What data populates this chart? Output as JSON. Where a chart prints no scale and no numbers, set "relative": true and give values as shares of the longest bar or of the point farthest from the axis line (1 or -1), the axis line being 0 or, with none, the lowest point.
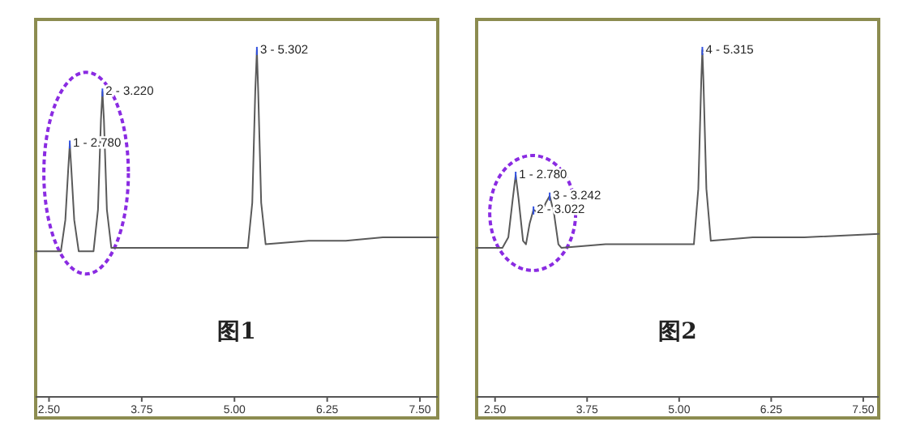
{
  "chart_data": [
    {
      "type": "line",
      "relative": true,
      "tick_labels": "x",
      "xlim": [
        2.32,
        7.74
      ],
      "xticks": [
        {
          "value": 2.5,
          "label": "2.50"
        },
        {
          "value": 3.75,
          "label": "3.75"
        },
        {
          "value": 5.0,
          "label": "5.00"
        },
        {
          "value": 6.25,
          "label": "6.25"
        },
        {
          "value": 7.5,
          "label": "7.50"
        }
      ],
      "series": [
        {
          "color": "#5a5a5a",
          "x": [
            2.32,
            2.66,
            2.72,
            2.76,
            2.78,
            2.8,
            2.84,
            2.9,
            3.1,
            3.16,
            3.2,
            3.22,
            3.24,
            3.28,
            3.34,
            4.0,
            5.18,
            5.24,
            5.28,
            5.302,
            5.32,
            5.36,
            5.42,
            6.0,
            6.5,
            7.0,
            7.74
          ],
          "values": [
            0.42,
            0.42,
            0.51,
            0.66,
            0.73,
            0.66,
            0.51,
            0.42,
            0.42,
            0.54,
            0.8,
            0.88,
            0.8,
            0.54,
            0.43,
            0.43,
            0.43,
            0.56,
            0.88,
            1,
            0.88,
            0.56,
            0.44,
            0.45,
            0.45,
            0.46,
            0.46
          ]
        }
      ],
      "annotations": [
        {
          "text": "1 - 2.780",
          "x": 2.78,
          "y": 0.73
        },
        {
          "text": "2 - 3.220",
          "x": 3.22,
          "y": 0.88
        },
        {
          "text": "3 - 5.302",
          "x": 5.302,
          "y": 1
        },
        "图1"
      ]
    },
    {
      "type": "line",
      "relative": true,
      "tick_labels": "x",
      "xlim": [
        2.25,
        7.71
      ],
      "xticks": [
        {
          "value": 2.5,
          "label": "2.50"
        },
        {
          "value": 3.75,
          "label": "3.75"
        },
        {
          "value": 5.0,
          "label": "5.00"
        },
        {
          "value": 6.25,
          "label": "6.25"
        },
        {
          "value": 7.5,
          "label": "7.50"
        }
      ],
      "series": [
        {
          "color": "#5a5a5a",
          "x": [
            2.25,
            2.6,
            2.68,
            2.74,
            2.78,
            2.82,
            2.88,
            2.92,
            2.97,
            3.022,
            3.08,
            3.13,
            3.19,
            3.242,
            3.3,
            3.36,
            3.4,
            4.0,
            5.2,
            5.26,
            5.3,
            5.315,
            5.33,
            5.37,
            5.43,
            6.0,
            6.7,
            7.71
          ],
          "values": [
            0.43,
            0.43,
            0.46,
            0.57,
            0.64,
            0.57,
            0.45,
            0.44,
            0.5,
            0.54,
            0.53,
            0.53,
            0.56,
            0.58,
            0.53,
            0.44,
            0.43,
            0.44,
            0.44,
            0.6,
            0.91,
            1,
            0.91,
            0.6,
            0.45,
            0.46,
            0.46,
            0.47
          ]
        }
      ],
      "annotations": [
        {
          "text": "1 - 2.780",
          "x": 2.78,
          "y": 0.64
        },
        {
          "text": "2 - 3.022",
          "x": 3.022,
          "y": 0.54
        },
        {
          "text": "3 - 3.242",
          "x": 3.242,
          "y": 0.58
        },
        {
          "text": "4 - 5.315",
          "x": 5.315,
          "y": 1
        },
        "图2"
      ]
    }
  ]
}
